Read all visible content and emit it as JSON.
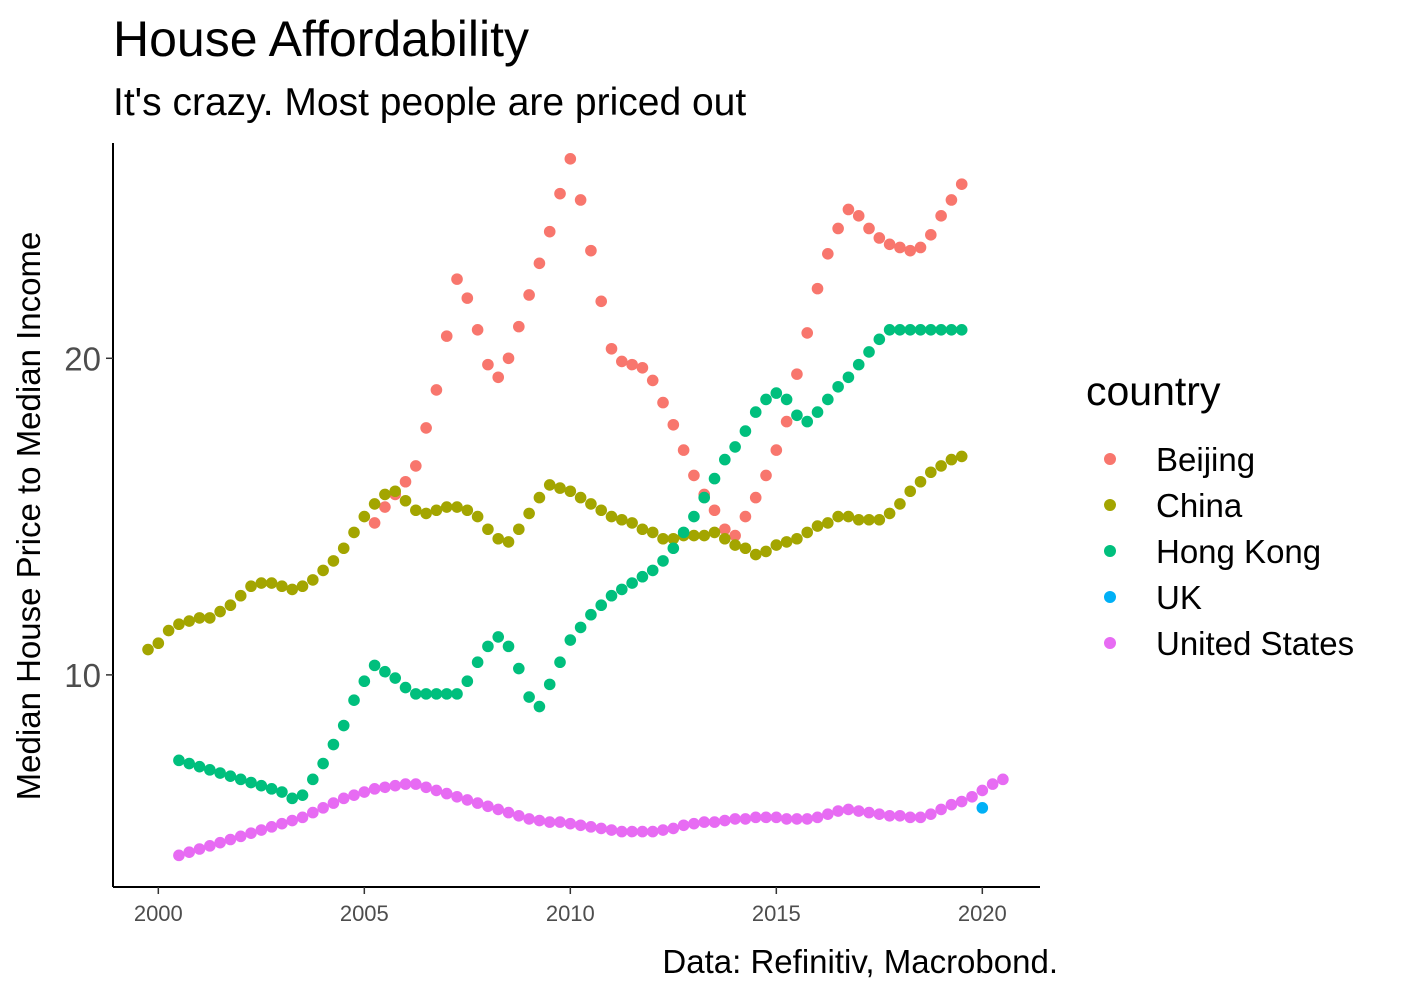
{
  "chart_data": {
    "type": "scatter",
    "title": "House Affordability",
    "subtitle": "It's crazy. Most people are priced out",
    "xlabel": "",
    "ylabel": "Median House Price to Median Income",
    "caption": "Data: Refinitiv, Macrobond.",
    "xlim": [
      1998.9,
      2021.4
    ],
    "ylim": [
      3.3,
      26.8
    ],
    "x_ticks": [
      2000,
      2005,
      2010,
      2015,
      2020
    ],
    "x_tick_labels": [
      "2000",
      "2005",
      "2010",
      "2015",
      "2020"
    ],
    "y_ticks": [
      10,
      20
    ],
    "y_tick_labels": [
      "10",
      "20"
    ],
    "grid": false,
    "legend": {
      "title": "country",
      "position": "right"
    },
    "series": [
      {
        "name": "Beijing",
        "color": "#F8766D",
        "points": [
          [
            2005.25,
            14.8
          ],
          [
            2005.5,
            15.3
          ],
          [
            2005.75,
            15.7
          ],
          [
            2006.0,
            16.1
          ],
          [
            2006.25,
            16.6
          ],
          [
            2006.5,
            17.8
          ],
          [
            2006.75,
            19.0
          ],
          [
            2007.0,
            20.7
          ],
          [
            2007.25,
            22.5
          ],
          [
            2007.5,
            21.9
          ],
          [
            2007.75,
            20.9
          ],
          [
            2008.0,
            19.8
          ],
          [
            2008.25,
            19.4
          ],
          [
            2008.5,
            20.0
          ],
          [
            2008.75,
            21.0
          ],
          [
            2009.0,
            22.0
          ],
          [
            2009.25,
            23.0
          ],
          [
            2009.5,
            24.0
          ],
          [
            2009.75,
            25.2
          ],
          [
            2010.0,
            26.3
          ],
          [
            2010.25,
            25.0
          ],
          [
            2010.5,
            23.4
          ],
          [
            2010.75,
            21.8
          ],
          [
            2011.0,
            20.3
          ],
          [
            2011.25,
            19.9
          ],
          [
            2011.5,
            19.8
          ],
          [
            2011.75,
            19.7
          ],
          [
            2012.0,
            19.3
          ],
          [
            2012.25,
            18.6
          ],
          [
            2012.5,
            17.9
          ],
          [
            2012.75,
            17.1
          ],
          [
            2013.0,
            16.3
          ],
          [
            2013.25,
            15.7
          ],
          [
            2013.5,
            15.2
          ],
          [
            2013.75,
            14.6
          ],
          [
            2014.0,
            14.4
          ],
          [
            2014.25,
            15.0
          ],
          [
            2014.5,
            15.6
          ],
          [
            2014.75,
            16.3
          ],
          [
            2015.0,
            17.1
          ],
          [
            2015.25,
            18.0
          ],
          [
            2015.5,
            19.5
          ],
          [
            2015.75,
            20.8
          ],
          [
            2016.0,
            22.2
          ],
          [
            2016.25,
            23.3
          ],
          [
            2016.5,
            24.1
          ],
          [
            2016.75,
            24.7
          ],
          [
            2017.0,
            24.5
          ],
          [
            2017.25,
            24.1
          ],
          [
            2017.5,
            23.8
          ],
          [
            2017.75,
            23.6
          ],
          [
            2018.0,
            23.5
          ],
          [
            2018.25,
            23.4
          ],
          [
            2018.5,
            23.5
          ],
          [
            2018.75,
            23.9
          ],
          [
            2019.0,
            24.5
          ],
          [
            2019.25,
            25.0
          ],
          [
            2019.5,
            25.5
          ]
        ]
      },
      {
        "name": "China",
        "color": "#A3A500",
        "points": [
          [
            1999.75,
            10.8
          ],
          [
            2000.0,
            11.0
          ],
          [
            2000.25,
            11.4
          ],
          [
            2000.5,
            11.6
          ],
          [
            2000.75,
            11.7
          ],
          [
            2001.0,
            11.8
          ],
          [
            2001.25,
            11.8
          ],
          [
            2001.5,
            12.0
          ],
          [
            2001.75,
            12.2
          ],
          [
            2002.0,
            12.5
          ],
          [
            2002.25,
            12.8
          ],
          [
            2002.5,
            12.9
          ],
          [
            2002.75,
            12.9
          ],
          [
            2003.0,
            12.8
          ],
          [
            2003.25,
            12.7
          ],
          [
            2003.5,
            12.8
          ],
          [
            2003.75,
            13.0
          ],
          [
            2004.0,
            13.3
          ],
          [
            2004.25,
            13.6
          ],
          [
            2004.5,
            14.0
          ],
          [
            2004.75,
            14.5
          ],
          [
            2005.0,
            15.0
          ],
          [
            2005.25,
            15.4
          ],
          [
            2005.5,
            15.7
          ],
          [
            2005.75,
            15.8
          ],
          [
            2006.0,
            15.5
          ],
          [
            2006.25,
            15.2
          ],
          [
            2006.5,
            15.1
          ],
          [
            2006.75,
            15.2
          ],
          [
            2007.0,
            15.3
          ],
          [
            2007.25,
            15.3
          ],
          [
            2007.5,
            15.2
          ],
          [
            2007.75,
            15.0
          ],
          [
            2008.0,
            14.6
          ],
          [
            2008.25,
            14.3
          ],
          [
            2008.5,
            14.2
          ],
          [
            2008.75,
            14.6
          ],
          [
            2009.0,
            15.1
          ],
          [
            2009.25,
            15.6
          ],
          [
            2009.5,
            16.0
          ],
          [
            2009.75,
            15.9
          ],
          [
            2010.0,
            15.8
          ],
          [
            2010.25,
            15.6
          ],
          [
            2010.5,
            15.4
          ],
          [
            2010.75,
            15.2
          ],
          [
            2011.0,
            15.0
          ],
          [
            2011.25,
            14.9
          ],
          [
            2011.5,
            14.8
          ],
          [
            2011.75,
            14.6
          ],
          [
            2012.0,
            14.5
          ],
          [
            2012.25,
            14.3
          ],
          [
            2012.5,
            14.3
          ],
          [
            2012.75,
            14.4
          ],
          [
            2013.0,
            14.4
          ],
          [
            2013.25,
            14.4
          ],
          [
            2013.5,
            14.5
          ],
          [
            2013.75,
            14.3
          ],
          [
            2014.0,
            14.1
          ],
          [
            2014.25,
            14.0
          ],
          [
            2014.5,
            13.8
          ],
          [
            2014.75,
            13.9
          ],
          [
            2015.0,
            14.1
          ],
          [
            2015.25,
            14.2
          ],
          [
            2015.5,
            14.3
          ],
          [
            2015.75,
            14.5
          ],
          [
            2016.0,
            14.7
          ],
          [
            2016.25,
            14.8
          ],
          [
            2016.5,
            15.0
          ],
          [
            2016.75,
            15.0
          ],
          [
            2017.0,
            14.9
          ],
          [
            2017.25,
            14.9
          ],
          [
            2017.5,
            14.9
          ],
          [
            2017.75,
            15.1
          ],
          [
            2018.0,
            15.4
          ],
          [
            2018.25,
            15.8
          ],
          [
            2018.5,
            16.1
          ],
          [
            2018.75,
            16.4
          ],
          [
            2019.0,
            16.6
          ],
          [
            2019.25,
            16.8
          ],
          [
            2019.5,
            16.9
          ]
        ]
      },
      {
        "name": "Hong Kong",
        "color": "#00BF7D",
        "points": [
          [
            2000.5,
            7.3
          ],
          [
            2000.75,
            7.2
          ],
          [
            2001.0,
            7.1
          ],
          [
            2001.25,
            7.0
          ],
          [
            2001.5,
            6.9
          ],
          [
            2001.75,
            6.8
          ],
          [
            2002.0,
            6.7
          ],
          [
            2002.25,
            6.6
          ],
          [
            2002.5,
            6.5
          ],
          [
            2002.75,
            6.4
          ],
          [
            2003.0,
            6.3
          ],
          [
            2003.25,
            6.1
          ],
          [
            2003.5,
            6.2
          ],
          [
            2003.75,
            6.7
          ],
          [
            2004.0,
            7.2
          ],
          [
            2004.25,
            7.8
          ],
          [
            2004.5,
            8.4
          ],
          [
            2004.75,
            9.2
          ],
          [
            2005.0,
            9.8
          ],
          [
            2005.25,
            10.3
          ],
          [
            2005.5,
            10.1
          ],
          [
            2005.75,
            9.9
          ],
          [
            2006.0,
            9.6
          ],
          [
            2006.25,
            9.4
          ],
          [
            2006.5,
            9.4
          ],
          [
            2006.75,
            9.4
          ],
          [
            2007.0,
            9.4
          ],
          [
            2007.25,
            9.4
          ],
          [
            2007.5,
            9.8
          ],
          [
            2007.75,
            10.4
          ],
          [
            2008.0,
            10.9
          ],
          [
            2008.25,
            11.2
          ],
          [
            2008.5,
            10.9
          ],
          [
            2008.75,
            10.2
          ],
          [
            2009.0,
            9.3
          ],
          [
            2009.25,
            9.0
          ],
          [
            2009.5,
            9.7
          ],
          [
            2009.75,
            10.4
          ],
          [
            2010.0,
            11.1
          ],
          [
            2010.25,
            11.5
          ],
          [
            2010.5,
            11.9
          ],
          [
            2010.75,
            12.2
          ],
          [
            2011.0,
            12.5
          ],
          [
            2011.25,
            12.7
          ],
          [
            2011.5,
            12.9
          ],
          [
            2011.75,
            13.1
          ],
          [
            2012.0,
            13.3
          ],
          [
            2012.25,
            13.6
          ],
          [
            2012.5,
            14.0
          ],
          [
            2012.75,
            14.5
          ],
          [
            2013.0,
            15.0
          ],
          [
            2013.25,
            15.6
          ],
          [
            2013.5,
            16.2
          ],
          [
            2013.75,
            16.8
          ],
          [
            2014.0,
            17.2
          ],
          [
            2014.25,
            17.7
          ],
          [
            2014.5,
            18.3
          ],
          [
            2014.75,
            18.7
          ],
          [
            2015.0,
            18.9
          ],
          [
            2015.25,
            18.7
          ],
          [
            2015.5,
            18.2
          ],
          [
            2015.75,
            18.0
          ],
          [
            2016.0,
            18.3
          ],
          [
            2016.25,
            18.7
          ],
          [
            2016.5,
            19.1
          ],
          [
            2016.75,
            19.4
          ],
          [
            2017.0,
            19.8
          ],
          [
            2017.25,
            20.2
          ],
          [
            2017.5,
            20.6
          ],
          [
            2017.75,
            20.9
          ],
          [
            2018.0,
            20.9
          ],
          [
            2018.25,
            20.9
          ],
          [
            2018.5,
            20.9
          ],
          [
            2018.75,
            20.9
          ],
          [
            2019.0,
            20.9
          ],
          [
            2019.25,
            20.9
          ],
          [
            2019.5,
            20.9
          ]
        ]
      },
      {
        "name": "UK",
        "color": "#00B0F6",
        "points": [
          [
            2020.0,
            5.8
          ]
        ]
      },
      {
        "name": "United States",
        "color": "#E76BF3",
        "points": [
          [
            2000.5,
            4.3
          ],
          [
            2000.75,
            4.4
          ],
          [
            2001.0,
            4.5
          ],
          [
            2001.25,
            4.6
          ],
          [
            2001.5,
            4.7
          ],
          [
            2001.75,
            4.8
          ],
          [
            2002.0,
            4.9
          ],
          [
            2002.25,
            5.0
          ],
          [
            2002.5,
            5.1
          ],
          [
            2002.75,
            5.2
          ],
          [
            2003.0,
            5.3
          ],
          [
            2003.25,
            5.4
          ],
          [
            2003.5,
            5.5
          ],
          [
            2003.75,
            5.65
          ],
          [
            2004.0,
            5.8
          ],
          [
            2004.25,
            5.95
          ],
          [
            2004.5,
            6.1
          ],
          [
            2004.75,
            6.2
          ],
          [
            2005.0,
            6.3
          ],
          [
            2005.25,
            6.4
          ],
          [
            2005.5,
            6.45
          ],
          [
            2005.75,
            6.5
          ],
          [
            2006.0,
            6.55
          ],
          [
            2006.25,
            6.55
          ],
          [
            2006.5,
            6.45
          ],
          [
            2006.75,
            6.35
          ],
          [
            2007.0,
            6.25
          ],
          [
            2007.25,
            6.15
          ],
          [
            2007.5,
            6.05
          ],
          [
            2007.75,
            5.95
          ],
          [
            2008.0,
            5.85
          ],
          [
            2008.25,
            5.75
          ],
          [
            2008.5,
            5.65
          ],
          [
            2008.75,
            5.55
          ],
          [
            2009.0,
            5.45
          ],
          [
            2009.25,
            5.4
          ],
          [
            2009.5,
            5.35
          ],
          [
            2009.75,
            5.35
          ],
          [
            2010.0,
            5.3
          ],
          [
            2010.25,
            5.25
          ],
          [
            2010.5,
            5.2
          ],
          [
            2010.75,
            5.15
          ],
          [
            2011.0,
            5.1
          ],
          [
            2011.25,
            5.05
          ],
          [
            2011.5,
            5.05
          ],
          [
            2011.75,
            5.05
          ],
          [
            2012.0,
            5.05
          ],
          [
            2012.25,
            5.1
          ],
          [
            2012.5,
            5.15
          ],
          [
            2012.75,
            5.25
          ],
          [
            2013.0,
            5.3
          ],
          [
            2013.25,
            5.35
          ],
          [
            2013.5,
            5.35
          ],
          [
            2013.75,
            5.4
          ],
          [
            2014.0,
            5.45
          ],
          [
            2014.25,
            5.45
          ],
          [
            2014.5,
            5.5
          ],
          [
            2014.75,
            5.5
          ],
          [
            2015.0,
            5.5
          ],
          [
            2015.25,
            5.45
          ],
          [
            2015.5,
            5.45
          ],
          [
            2015.75,
            5.45
          ],
          [
            2016.0,
            5.5
          ],
          [
            2016.25,
            5.6
          ],
          [
            2016.5,
            5.7
          ],
          [
            2016.75,
            5.75
          ],
          [
            2017.0,
            5.7
          ],
          [
            2017.25,
            5.65
          ],
          [
            2017.5,
            5.6
          ],
          [
            2017.75,
            5.55
          ],
          [
            2018.0,
            5.55
          ],
          [
            2018.25,
            5.5
          ],
          [
            2018.5,
            5.5
          ],
          [
            2018.75,
            5.6
          ],
          [
            2019.0,
            5.75
          ],
          [
            2019.25,
            5.9
          ],
          [
            2019.5,
            6.0
          ],
          [
            2019.75,
            6.15
          ],
          [
            2020.0,
            6.35
          ],
          [
            2020.25,
            6.55
          ],
          [
            2020.5,
            6.7
          ]
        ]
      }
    ]
  }
}
